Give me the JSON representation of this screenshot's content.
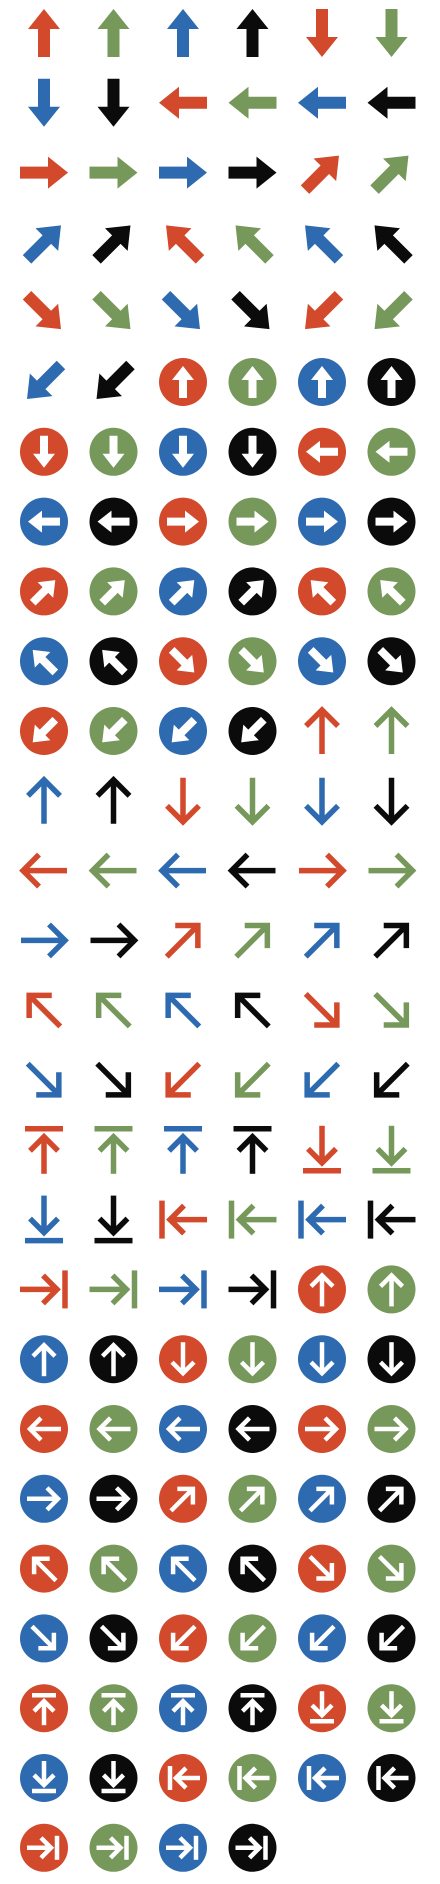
{
  "colors": {
    "red": "#D2492B",
    "green": "#76985A",
    "blue": "#2E6AAF",
    "black": "#0B0B0B"
  },
  "color_cycle": [
    "red",
    "green",
    "blue",
    "black"
  ],
  "icon_sets": [
    {
      "name": "solid-arrows",
      "style": "solid",
      "directions": [
        "up",
        "down",
        "left",
        "right",
        "up-right",
        "up-left",
        "down-right",
        "down-left"
      ]
    },
    {
      "name": "circle-solid-arrows",
      "style": "circle-solid",
      "directions": [
        "up",
        "down",
        "left",
        "right",
        "up-right",
        "up-left",
        "down-right",
        "down-left"
      ]
    },
    {
      "name": "line-arrows",
      "style": "line",
      "directions": [
        "up",
        "down",
        "left",
        "right",
        "up-right",
        "up-left",
        "down-right",
        "down-left",
        "to-top",
        "to-bottom",
        "to-start",
        "to-end"
      ]
    },
    {
      "name": "circle-line-arrows",
      "style": "circle-line",
      "directions": [
        "up",
        "down",
        "left",
        "right",
        "up-right",
        "up-left",
        "down-right",
        "down-left",
        "to-top",
        "to-bottom",
        "to-start",
        "to-end"
      ]
    }
  ]
}
